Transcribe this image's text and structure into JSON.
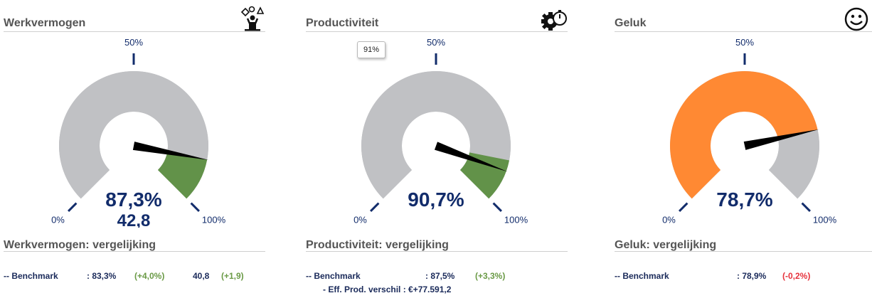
{
  "colors": {
    "gauge_bg": "#c0c1c4",
    "green": "#629249",
    "orange": "#ff8933",
    "navy": "#122c6b",
    "positive": "#6a9a46",
    "negative": "#e6323c"
  },
  "tick_labels": {
    "min": "0%",
    "mid": "50%",
    "max": "100%"
  },
  "panels": [
    {
      "title": "Werkvermogen",
      "icon": "juggler-icon",
      "value_text": "87,3%",
      "secondary_text": "42,8",
      "needle": 87.3,
      "band": [
        87.3,
        100
      ],
      "band_color": "#629249",
      "fill": [
        0,
        87.3
      ],
      "fill_color": "#c0c1c4",
      "compare_title": "Werkvermogen: vergelijking",
      "bench_label": "-- Benchmark",
      "bench_value": ": 83,3%",
      "bench_delta": "(+4,0%)",
      "bench_delta_state": "positive",
      "bench_value2": "40,8",
      "bench_delta2": "(+1,9)"
    },
    {
      "title": "Productiviteit",
      "icon": "gear-stopwatch-icon",
      "value_text": "90,7%",
      "tooltip": "91%",
      "needle": 90.7,
      "band": [
        87.5,
        100
      ],
      "band_color": "#629249",
      "fill": [
        0,
        87.5
      ],
      "fill_color": "#c0c1c4",
      "compare_title": "Productiviteit: vergelijking",
      "bench_label": "-- Benchmark",
      "bench_value": ": 87,5%",
      "bench_delta": "(+3,3%)",
      "bench_delta_state": "positive",
      "extra_label": "- Eff. Prod. verschil : €+77.591,2"
    },
    {
      "title": "Geluk",
      "icon": "smiley-icon",
      "value_text": "78,7%",
      "needle": 78.7,
      "band": [
        0,
        78.7
      ],
      "band_color": "#ff8933",
      "fill": [
        78.7,
        100
      ],
      "fill_color": "#c0c1c4",
      "compare_title": "Geluk: vergelijking",
      "bench_label": "-- Benchmark",
      "bench_value": ": 78,9%",
      "bench_delta": "(-0,2%)",
      "bench_delta_state": "negative"
    }
  ]
}
